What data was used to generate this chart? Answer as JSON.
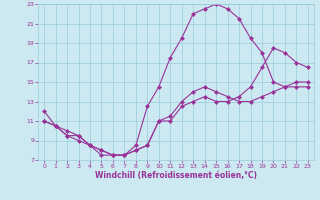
{
  "background_color": "#cce8f0",
  "grid_color": "#99ccdd",
  "line_color": "#993399",
  "xlabel": "Windchill (Refroidissement éolien,°C)",
  "xlim": [
    -0.5,
    23.5
  ],
  "ylim": [
    7,
    23
  ],
  "xticks": [
    0,
    1,
    2,
    3,
    4,
    5,
    6,
    7,
    8,
    9,
    10,
    11,
    12,
    13,
    14,
    15,
    16,
    17,
    18,
    19,
    20,
    21,
    22,
    23
  ],
  "yticks": [
    7,
    9,
    11,
    13,
    15,
    17,
    19,
    21,
    23
  ],
  "curve1_x": [
    0,
    1,
    2,
    3,
    4,
    5,
    6,
    7,
    8,
    9,
    10,
    11,
    12,
    13,
    14,
    15,
    16,
    17,
    18,
    19,
    20,
    21,
    22,
    23
  ],
  "curve1_y": [
    12.0,
    10.5,
    10.0,
    9.5,
    8.5,
    8.0,
    7.5,
    7.5,
    8.5,
    12.5,
    14.5,
    17.5,
    19.5,
    22.0,
    22.5,
    23.0,
    22.5,
    21.5,
    19.5,
    18.0,
    15.0,
    14.5,
    14.5,
    14.5
  ],
  "curve2_x": [
    0,
    1,
    2,
    3,
    4,
    5,
    6,
    7,
    8,
    9,
    10,
    11,
    12,
    13,
    14,
    15,
    16,
    17,
    18,
    19,
    20,
    21,
    22,
    23
  ],
  "curve2_y": [
    11.0,
    10.5,
    9.5,
    9.5,
    8.5,
    8.0,
    7.5,
    7.5,
    8.0,
    8.5,
    11.0,
    11.5,
    13.0,
    14.0,
    14.5,
    14.0,
    13.5,
    13.0,
    13.0,
    13.5,
    14.0,
    14.5,
    15.0,
    15.0
  ],
  "curve3_x": [
    0,
    1,
    2,
    3,
    4,
    5,
    6,
    7,
    8,
    9,
    10,
    11,
    12,
    13,
    14,
    15,
    16,
    17,
    18,
    19,
    20,
    21,
    22,
    23
  ],
  "curve3_y": [
    11.0,
    10.5,
    9.5,
    9.0,
    8.5,
    7.5,
    7.5,
    7.5,
    8.0,
    8.5,
    11.0,
    11.0,
    12.5,
    13.0,
    13.5,
    13.0,
    13.0,
    13.5,
    14.5,
    16.5,
    18.5,
    18.0,
    17.0,
    16.5
  ]
}
